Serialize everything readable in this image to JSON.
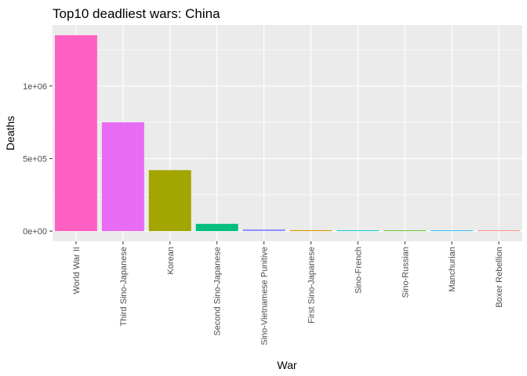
{
  "chart_data": {
    "type": "bar",
    "title": "Top10 deadliest wars:  China",
    "xlabel": "War",
    "ylabel": "Deaths",
    "categories": [
      "World War II",
      "Third Sino-Japanese",
      "Korean",
      "Second Sino-Japanese",
      "Sino-Vietnamese Punitive",
      "First Sino-Japanese",
      "Sino-French",
      "Sino-Russian",
      "Manchurian",
      "Boxer Rebellion"
    ],
    "values": [
      1350000,
      750000,
      420000,
      50000,
      12000,
      6000,
      5000,
      1200,
      800,
      500
    ],
    "colors": [
      "#FF61C3",
      "#E76BF3",
      "#A3A500",
      "#00BF7D",
      "#9590FF",
      "#D89000",
      "#00BFC4",
      "#39B600",
      "#00B0F6",
      "#F8766D"
    ],
    "ylim": [
      -70000,
      1420000
    ],
    "yticks": [
      0,
      500000,
      1000000
    ],
    "ytick_labels": [
      "0e+00",
      "5e+05",
      "1e+06"
    ],
    "legend": "none",
    "grid": true,
    "panel_background": "#EBEBEB",
    "grid_color": "#FFFFFF"
  }
}
